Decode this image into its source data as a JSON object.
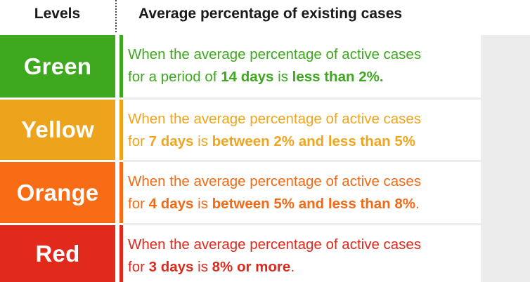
{
  "header": {
    "levels_label": "Levels",
    "description_label": "Average percentage of existing cases"
  },
  "levels": [
    {
      "name": "Green",
      "color": "#3ea81f",
      "text_color": "#3ea81f",
      "line1": "When the average percentage of active cases",
      "line2_parts": [
        {
          "text": "for a period of ",
          "bold": false
        },
        {
          "text": "14 days",
          "bold": true
        },
        {
          "text": " is ",
          "bold": false
        },
        {
          "text": "less than 2%.",
          "bold": true
        }
      ]
    },
    {
      "name": "Yellow",
      "color": "#eea31c",
      "text_color": "#f0a51e",
      "line1": "When the average percentage of active cases",
      "line2_parts": [
        {
          "text": "for ",
          "bold": false
        },
        {
          "text": "7 days",
          "bold": true
        },
        {
          "text": " is ",
          "bold": false
        },
        {
          "text": "between 2% and less than 5%",
          "bold": true
        }
      ]
    },
    {
      "name": "Orange",
      "color": "#f76c14",
      "text_color": "#f26a15",
      "line1": "When the average percentage of active cases",
      "line2_parts": [
        {
          "text": "for ",
          "bold": false
        },
        {
          "text": "4 days",
          "bold": true
        },
        {
          "text": " is ",
          "bold": false
        },
        {
          "text": "between 5% and less than 8%",
          "bold": true
        },
        {
          "text": ".",
          "bold": false
        }
      ]
    },
    {
      "name": "Red",
      "color": "#e12a1c",
      "text_color": "#de2a1d",
      "line1": "When the average percentage of active cases",
      "line2_parts": [
        {
          "text": "for ",
          "bold": false
        },
        {
          "text": "3 days",
          "bold": true
        },
        {
          "text": " is ",
          "bold": false
        },
        {
          "text": "8% or more",
          "bold": true
        },
        {
          "text": ".",
          "bold": false
        }
      ]
    }
  ]
}
